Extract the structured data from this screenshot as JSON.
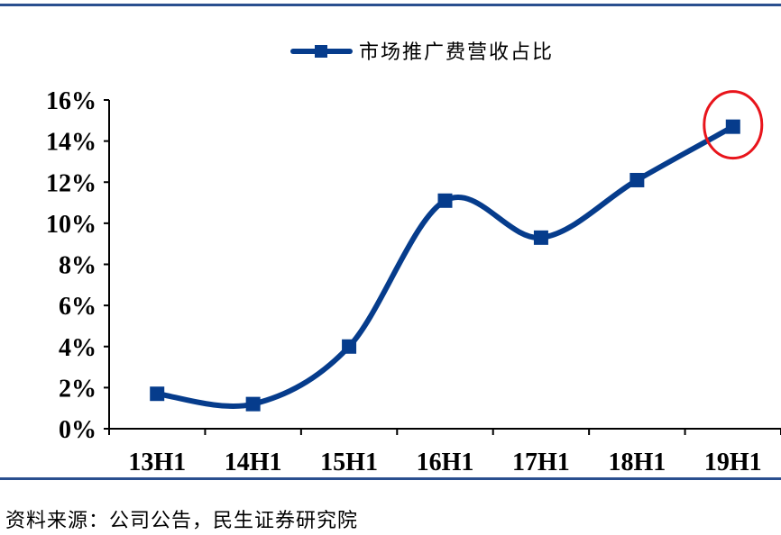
{
  "chart_data": {
    "type": "line",
    "categories": [
      "13H1",
      "14H1",
      "15H1",
      "16H1",
      "17H1",
      "18H1",
      "19H1"
    ],
    "series": [
      {
        "name": "市场推广费营收占比",
        "values": [
          1.7,
          1.2,
          4.0,
          11.1,
          9.3,
          12.1,
          14.7
        ]
      }
    ],
    "ylim": [
      0,
      16
    ],
    "yticks": [
      "0%",
      "2%",
      "4%",
      "6%",
      "8%",
      "10%",
      "12%",
      "14%",
      "16%"
    ],
    "legend_position": "top-center",
    "grid": false,
    "smooth": true,
    "highlight": {
      "category": "19H1",
      "shape": "ellipse",
      "color": "#e8141b"
    }
  },
  "colors": {
    "series": "#063c8c",
    "rule": "#2a4f8f",
    "axis": "#000000",
    "highlight": "#e8141b"
  },
  "source_text": "资料来源：公司公告，民生证券研究院"
}
